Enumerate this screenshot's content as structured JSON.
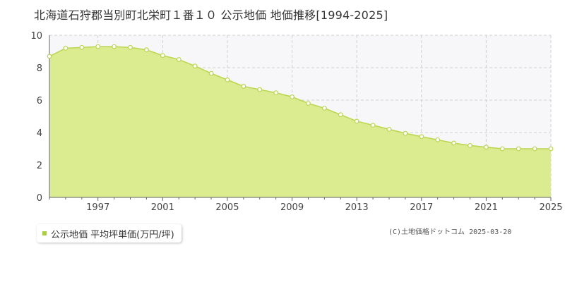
{
  "title": "北海道石狩郡当別町北栄町１番１０ 公示地価 地価推移[1994-2025]",
  "legend": {
    "label": "公示地価 平均坪単価(万円/坪)"
  },
  "credit": "(C)土地価格ドットコム 2025-03-20",
  "colors": {
    "fill": "#dbeb8f",
    "line": "#b9d64f",
    "point_fill": "#ffffff",
    "point_stroke": "#b9d64f",
    "legend_marker": "#a8cf3c",
    "plot_bg": "#f7f7fa",
    "grid": "#d0d0d0"
  },
  "chart_data": {
    "type": "area",
    "title": "北海道石狩郡当別町北栄町１番１０ 公示地価 地価推移[1994-2025]",
    "xlabel": "",
    "ylabel": "",
    "xlim": [
      1994,
      2025
    ],
    "ylim": [
      0,
      10
    ],
    "x_ticks": [
      "1997",
      "2001",
      "2005",
      "2009",
      "2013",
      "2017",
      "2021",
      "2025"
    ],
    "y_ticks": [
      "0",
      "2",
      "4",
      "6",
      "8",
      "10"
    ],
    "grid": true,
    "legend_position": "bottom-left",
    "series": [
      {
        "name": "公示地価 平均坪単価(万円/坪)",
        "x": [
          1994,
          1995,
          1996,
          1997,
          1998,
          1999,
          2000,
          2001,
          2002,
          2003,
          2004,
          2005,
          2006,
          2007,
          2008,
          2009,
          2010,
          2011,
          2012,
          2013,
          2014,
          2015,
          2016,
          2017,
          2018,
          2019,
          2020,
          2021,
          2022,
          2023,
          2024,
          2025
        ],
        "values": [
          8.7,
          9.2,
          9.25,
          9.3,
          9.3,
          9.25,
          9.1,
          8.75,
          8.5,
          8.1,
          7.65,
          7.25,
          6.85,
          6.65,
          6.45,
          6.2,
          5.8,
          5.5,
          5.1,
          4.7,
          4.45,
          4.2,
          3.95,
          3.75,
          3.55,
          3.35,
          3.2,
          3.1,
          3.0,
          3.0,
          3.0,
          3.0
        ]
      }
    ]
  }
}
